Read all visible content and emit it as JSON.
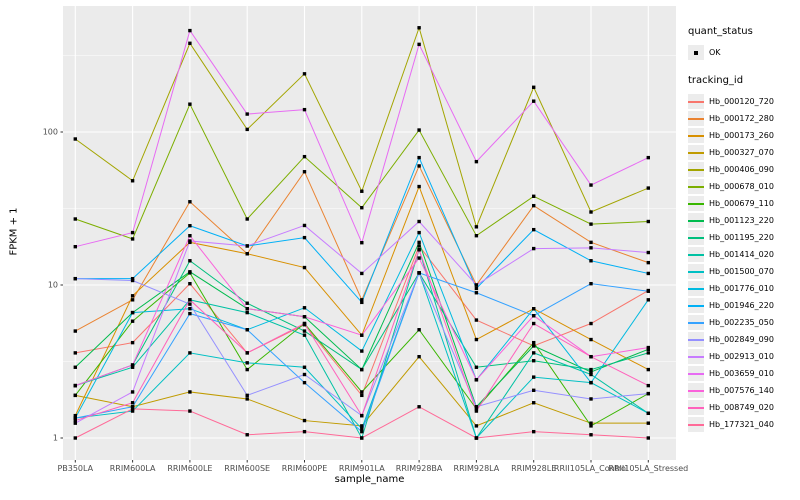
{
  "figure": {
    "background": "#FFFFFF",
    "panel_background": "#EBEBEB",
    "grid_color": "#FFFFFF",
    "tick_label_color": "#4D4D4D",
    "point_color": "#000000"
  },
  "axes": {
    "x_title": "sample_name",
    "y_title": "FPKM + 1",
    "y_tick_labels": [
      "1",
      "10",
      "100"
    ]
  },
  "legend": {
    "quant_title": "quant_status",
    "quant_items": [
      {
        "label": "OK"
      }
    ],
    "tracking_title": "tracking_id"
  },
  "chart_data": {
    "type": "line",
    "title": "",
    "xlabel": "sample_name",
    "ylabel": "FPKM + 1",
    "y_scale": "log10",
    "ylim": [
      0.9,
      700
    ],
    "grid": true,
    "legend_position": "right",
    "y_major_ticks": [
      1,
      10,
      100
    ],
    "y_minor_ticks": [
      3.162,
      31.62,
      316.2
    ],
    "categories": [
      "PB350LA",
      "RRIM600LA",
      "RRIM600LE",
      "RRIM600SE",
      "RRIM600PE",
      "RRIM901LA",
      "RRIM928BA",
      "RRIM928LA",
      "RRIM928LE",
      "RRII105LA_Control",
      "RRII105LA_Stressed"
    ],
    "quant_status": "OK",
    "series": [
      {
        "name": "Hb_000120_720",
        "color": "#F8766D",
        "values": [
          3.6,
          4.2,
          10.2,
          3.6,
          5.5,
          1.9,
          18,
          5.9,
          4.0,
          5.6,
          9.2
        ]
      },
      {
        "name": "Hb_000172_280",
        "color": "#EA8331",
        "values": [
          5.0,
          8.0,
          35,
          16,
          55,
          8.0,
          60,
          10,
          33,
          19,
          14
        ]
      },
      {
        "name": "Hb_000173_260",
        "color": "#D89000",
        "values": [
          1.4,
          8.5,
          19,
          16,
          13,
          4.7,
          44,
          4.4,
          7.0,
          4.4,
          2.8
        ]
      },
      {
        "name": "Hb_000327_070",
        "color": "#C09B00",
        "values": [
          1.9,
          1.6,
          2.0,
          1.8,
          1.3,
          1.2,
          3.4,
          1.2,
          1.7,
          1.25,
          1.25
        ]
      },
      {
        "name": "Hb_000406_090",
        "color": "#A3A500",
        "values": [
          90,
          48,
          380,
          104,
          240,
          41,
          480,
          24,
          196,
          30,
          43
        ]
      },
      {
        "name": "Hb_000678_010",
        "color": "#7CAE00",
        "values": [
          27,
          20,
          152,
          27,
          69,
          32,
          103,
          21,
          38,
          25,
          26
        ]
      },
      {
        "name": "Hb_000679_110",
        "color": "#39B600",
        "values": [
          1.9,
          5.8,
          12,
          2.8,
          5.6,
          2.0,
          5.1,
          1.55,
          4.2,
          1.2,
          1.95
        ]
      },
      {
        "name": "Hb_001123_220",
        "color": "#00BB4E",
        "values": [
          2.9,
          6.6,
          12.2,
          7.0,
          6.2,
          2.8,
          19,
          1.6,
          4.0,
          2.7,
          3.8
        ]
      },
      {
        "name": "Hb_001195_220",
        "color": "#00BF7D",
        "values": [
          2.2,
          3.0,
          14.4,
          7.6,
          5.0,
          2.8,
          12,
          2.9,
          3.2,
          2.8,
          3.6
        ]
      },
      {
        "name": "Hb_001414_020",
        "color": "#00C1A3",
        "values": [
          2.2,
          2.9,
          8.0,
          6.6,
          4.7,
          1.0,
          17,
          1.0,
          3.6,
          2.6,
          1.45
        ]
      },
      {
        "name": "Hb_001500_070",
        "color": "#00C0C4",
        "values": [
          1.35,
          1.5,
          3.6,
          3.1,
          2.9,
          1.15,
          12,
          1.0,
          2.5,
          2.3,
          1.45
        ]
      },
      {
        "name": "Hb_001776_010",
        "color": "#00BAE0",
        "values": [
          1.35,
          6.6,
          7.0,
          5.1,
          7.1,
          3.7,
          22,
          2.4,
          7.0,
          2.3,
          8.0
        ]
      },
      {
        "name": "Hb_001946_220",
        "color": "#00B0F6",
        "values": [
          11,
          11,
          24.4,
          18,
          20.4,
          7.7,
          68,
          9.5,
          23,
          14.4,
          11.9
        ]
      },
      {
        "name": "Hb_002235_050",
        "color": "#35A2FF",
        "values": [
          1.35,
          1.6,
          6.5,
          5.1,
          2.3,
          1.1,
          12,
          8.9,
          6.3,
          10.2,
          9.1
        ]
      },
      {
        "name": "Hb_002849_090",
        "color": "#9590FF",
        "values": [
          11,
          10.7,
          7.5,
          1.9,
          2.6,
          1.4,
          12,
          1.6,
          2.05,
          1.8,
          1.95
        ]
      },
      {
        "name": "Hb_002913_010",
        "color": "#C77CFF",
        "values": [
          1.25,
          2.0,
          19.4,
          18,
          24.5,
          11.9,
          26,
          10,
          17.3,
          17.5,
          16.3
        ]
      },
      {
        "name": "Hb_003659_010",
        "color": "#E76BF3",
        "values": [
          17.8,
          22,
          460,
          131,
          140,
          18.9,
          374,
          64,
          159,
          45,
          68
        ]
      },
      {
        "name": "Hb_007576_140",
        "color": "#FA62DB",
        "values": [
          2.2,
          3.0,
          21,
          7.0,
          6.2,
          4.7,
          15,
          2.4,
          6.3,
          3.4,
          3.9
        ]
      },
      {
        "name": "Hb_008749_020",
        "color": "#FF62BC",
        "values": [
          1.3,
          1.7,
          8.0,
          3.6,
          5.6,
          1.4,
          17,
          1.5,
          5.6,
          3.4,
          2.2
        ]
      },
      {
        "name": "Hb_177321_040",
        "color": "#FF6A98",
        "values": [
          1.0,
          1.55,
          1.5,
          1.05,
          1.1,
          1.0,
          1.6,
          1.0,
          1.1,
          1.05,
          1.0
        ]
      }
    ]
  }
}
